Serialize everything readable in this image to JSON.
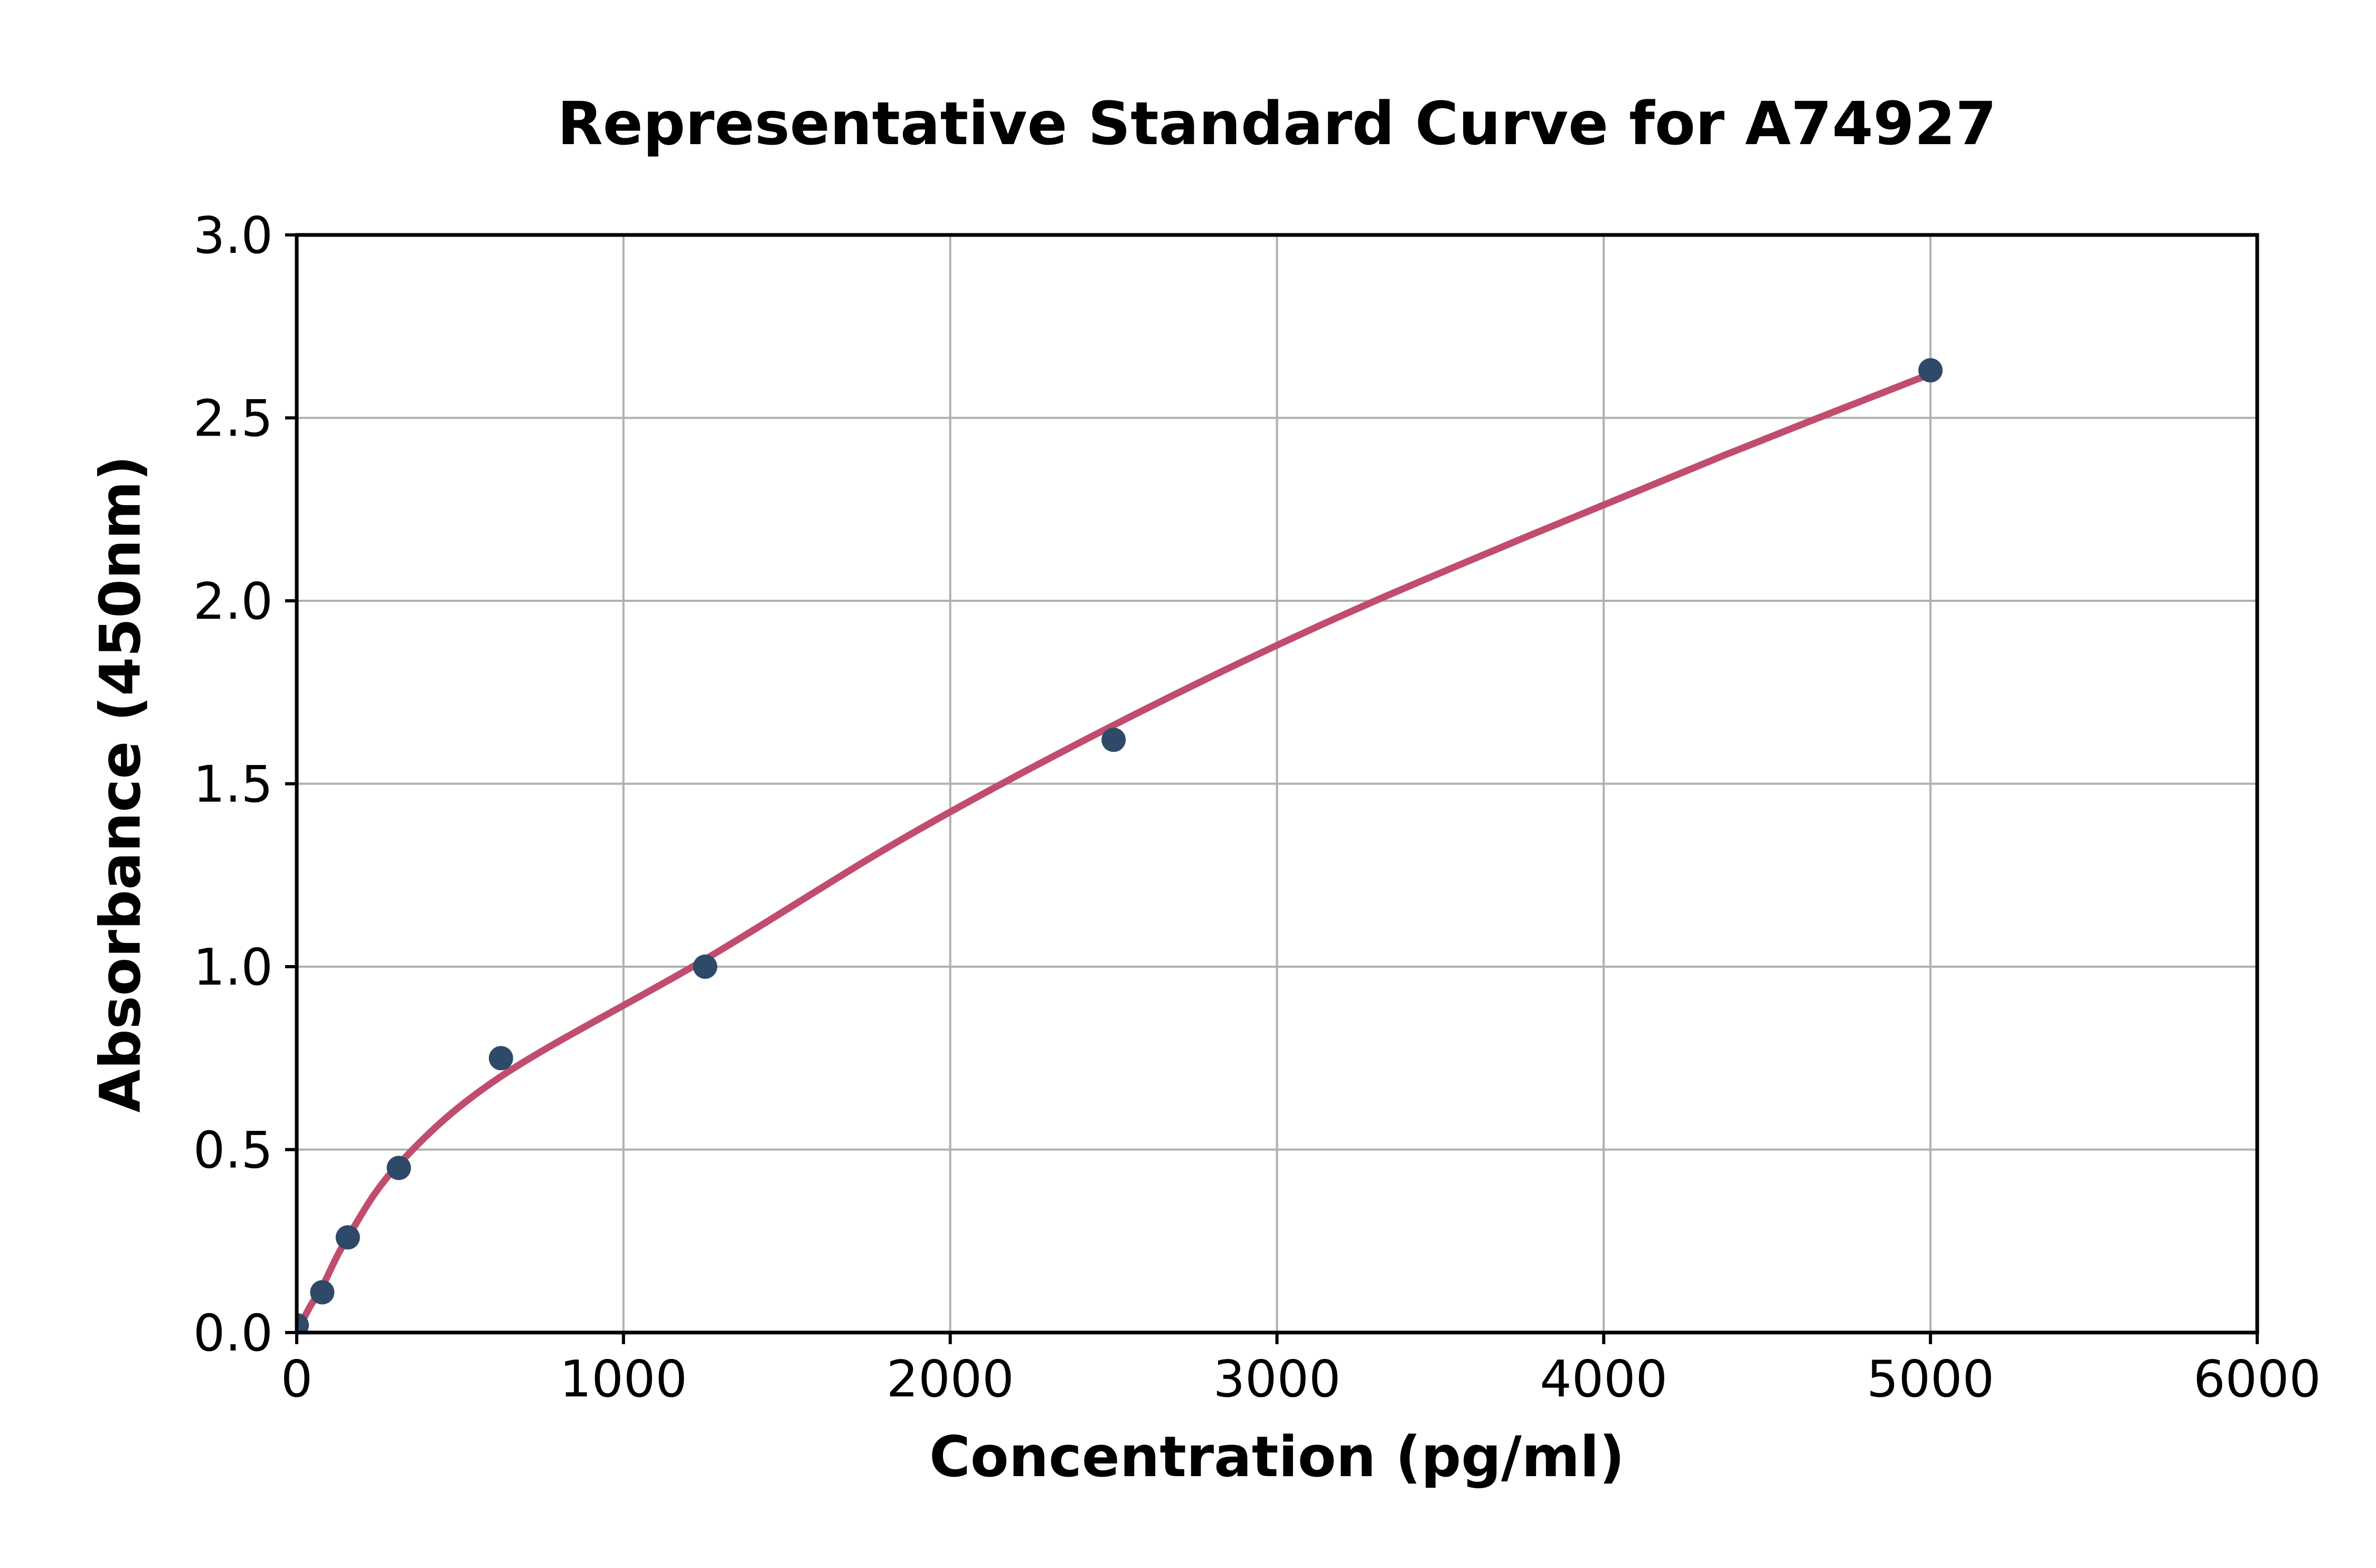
{
  "figure": {
    "background": "#ffffff"
  },
  "chart_data": {
    "type": "scatter",
    "title": "Representative Standard Curve for A74927",
    "xlabel": "Concentration (pg/ml)",
    "ylabel": "Absorbance (450nm)",
    "xlim": [
      0,
      6000
    ],
    "ylim": [
      0,
      3.0
    ],
    "grid": true,
    "legend_position": "none",
    "x_ticks": [
      {
        "v": 0,
        "label": "0"
      },
      {
        "v": 1000,
        "label": "1000"
      },
      {
        "v": 2000,
        "label": "2000"
      },
      {
        "v": 3000,
        "label": "3000"
      },
      {
        "v": 4000,
        "label": "4000"
      },
      {
        "v": 5000,
        "label": "5000"
      },
      {
        "v": 6000,
        "label": "6000"
      }
    ],
    "y_ticks": [
      {
        "v": 0,
        "label": "0.0"
      },
      {
        "v": 0.5,
        "label": "0.5"
      },
      {
        "v": 1.0,
        "label": "1.0"
      },
      {
        "v": 1.5,
        "label": "1.5"
      },
      {
        "v": 2.0,
        "label": "2.0"
      },
      {
        "v": 2.5,
        "label": "2.5"
      },
      {
        "v": 3.0,
        "label": "3.0"
      }
    ],
    "series": [
      {
        "name": "standards",
        "type": "scatter",
        "color": "#2e4a68",
        "points": [
          {
            "x": 0,
            "y": 0.02
          },
          {
            "x": 78.13,
            "y": 0.11
          },
          {
            "x": 156.25,
            "y": 0.26
          },
          {
            "x": 312.5,
            "y": 0.45
          },
          {
            "x": 625,
            "y": 0.75
          },
          {
            "x": 1250,
            "y": 1.0
          },
          {
            "x": 2500,
            "y": 1.62
          },
          {
            "x": 5000,
            "y": 2.63
          }
        ]
      },
      {
        "name": "fitted-curve",
        "type": "line",
        "color": "#c14d6e",
        "points": [
          {
            "x": 0,
            "y": 0.0
          },
          {
            "x": 40,
            "y": 0.07
          },
          {
            "x": 78,
            "y": 0.125
          },
          {
            "x": 156,
            "y": 0.26
          },
          {
            "x": 312,
            "y": 0.46
          },
          {
            "x": 625,
            "y": 0.7
          },
          {
            "x": 1250,
            "y": 1.02
          },
          {
            "x": 1875,
            "y": 1.36
          },
          {
            "x": 2500,
            "y": 1.66
          },
          {
            "x": 3125,
            "y": 1.93
          },
          {
            "x": 3750,
            "y": 2.17
          },
          {
            "x": 4375,
            "y": 2.4
          },
          {
            "x": 5000,
            "y": 2.62
          }
        ]
      }
    ],
    "grid_color": "#b0b0b0",
    "axis_color": "#000000",
    "background_color": "#ffffff"
  }
}
